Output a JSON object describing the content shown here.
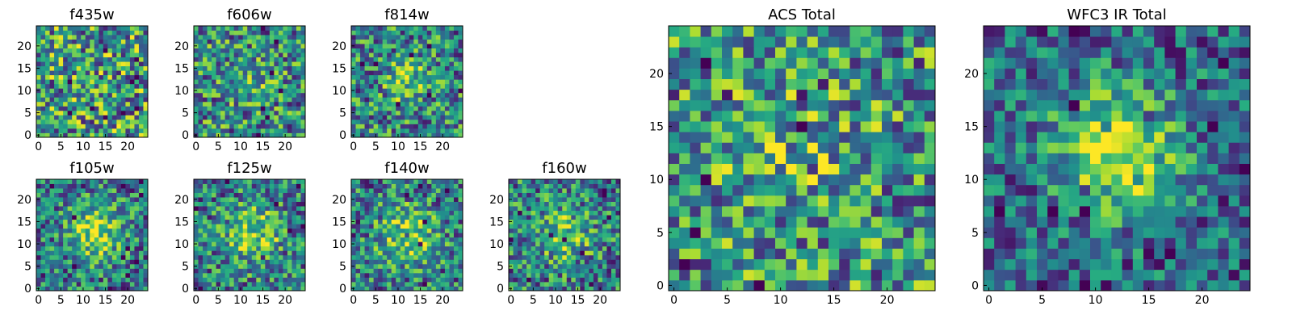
{
  "chart_data": [
    {
      "type": "heatmap",
      "title": "f435w",
      "grid": false,
      "colormap": "viridis",
      "size": [
        25,
        25
      ],
      "xticks": [
        "0",
        "5",
        "10",
        "15",
        "20"
      ],
      "yticks": [
        "0",
        "5",
        "10",
        "15",
        "20"
      ],
      "blob": {
        "center": [
          12,
          12
        ],
        "amplitude": 0.0,
        "width": 4
      }
    },
    {
      "type": "heatmap",
      "title": "f606w",
      "grid": false,
      "colormap": "viridis",
      "size": [
        25,
        25
      ],
      "xticks": [
        "0",
        "5",
        "10",
        "15",
        "20"
      ],
      "yticks": [
        "0",
        "5",
        "10",
        "15",
        "20"
      ],
      "blob": {
        "center": [
          12,
          12
        ],
        "amplitude": 0.25,
        "width": 3.5
      }
    },
    {
      "type": "heatmap",
      "title": "f814w",
      "grid": false,
      "colormap": "viridis",
      "size": [
        25,
        25
      ],
      "xticks": [
        "0",
        "5",
        "10",
        "15",
        "20"
      ],
      "yticks": [
        "0",
        "5",
        "10",
        "15",
        "20"
      ],
      "blob": {
        "center": [
          12,
          12
        ],
        "amplitude": 0.35,
        "width": 3.5
      }
    },
    {
      "type": "heatmap",
      "title": "f105w",
      "grid": false,
      "colormap": "viridis",
      "size": [
        25,
        25
      ],
      "xticks": [
        "0",
        "5",
        "10",
        "15",
        "20"
      ],
      "yticks": [
        "0",
        "5",
        "10",
        "15",
        "20"
      ],
      "blob": {
        "center": [
          13,
          13
        ],
        "amplitude": 0.6,
        "width": 4.5
      }
    },
    {
      "type": "heatmap",
      "title": "f125w",
      "grid": false,
      "colormap": "viridis",
      "size": [
        25,
        25
      ],
      "xticks": [
        "0",
        "5",
        "10",
        "15",
        "20"
      ],
      "yticks": [
        "0",
        "5",
        "10",
        "15",
        "20"
      ],
      "blob": {
        "center": [
          13,
          12
        ],
        "amplitude": 0.5,
        "width": 4.5
      }
    },
    {
      "type": "heatmap",
      "title": "f140w",
      "grid": false,
      "colormap": "viridis",
      "size": [
        25,
        25
      ],
      "xticks": [
        "0",
        "5",
        "10",
        "15",
        "20"
      ],
      "yticks": [
        "0",
        "5",
        "10",
        "15",
        "20"
      ],
      "blob": {
        "center": [
          12,
          12
        ],
        "amplitude": 0.5,
        "width": 4.5
      }
    },
    {
      "type": "heatmap",
      "title": "f160w",
      "grid": false,
      "colormap": "viridis",
      "size": [
        25,
        25
      ],
      "xticks": [
        "0",
        "5",
        "10",
        "15",
        "20"
      ],
      "yticks": [
        "0",
        "5",
        "10",
        "15",
        "20"
      ],
      "blob": {
        "center": [
          12,
          12
        ],
        "amplitude": 0.45,
        "width": 4.0
      }
    },
    {
      "type": "heatmap",
      "title": "ACS Total",
      "grid": false,
      "colormap": "viridis",
      "size": [
        25,
        25
      ],
      "xticks": [
        "0",
        "5",
        "10",
        "15",
        "20"
      ],
      "yticks": [
        "0",
        "5",
        "10",
        "15",
        "20"
      ],
      "blob": {
        "center": [
          12,
          12
        ],
        "amplitude": 0.15,
        "width": 5
      }
    },
    {
      "type": "heatmap",
      "title": "WFC3 IR Total",
      "grid": false,
      "colormap": "viridis",
      "size": [
        25,
        25
      ],
      "xticks": [
        "0",
        "5",
        "10",
        "15",
        "20"
      ],
      "yticks": [
        "0",
        "5",
        "10",
        "15",
        "20"
      ],
      "blob": {
        "center": [
          12,
          13
        ],
        "amplitude": 0.85,
        "width": 4
      }
    }
  ]
}
